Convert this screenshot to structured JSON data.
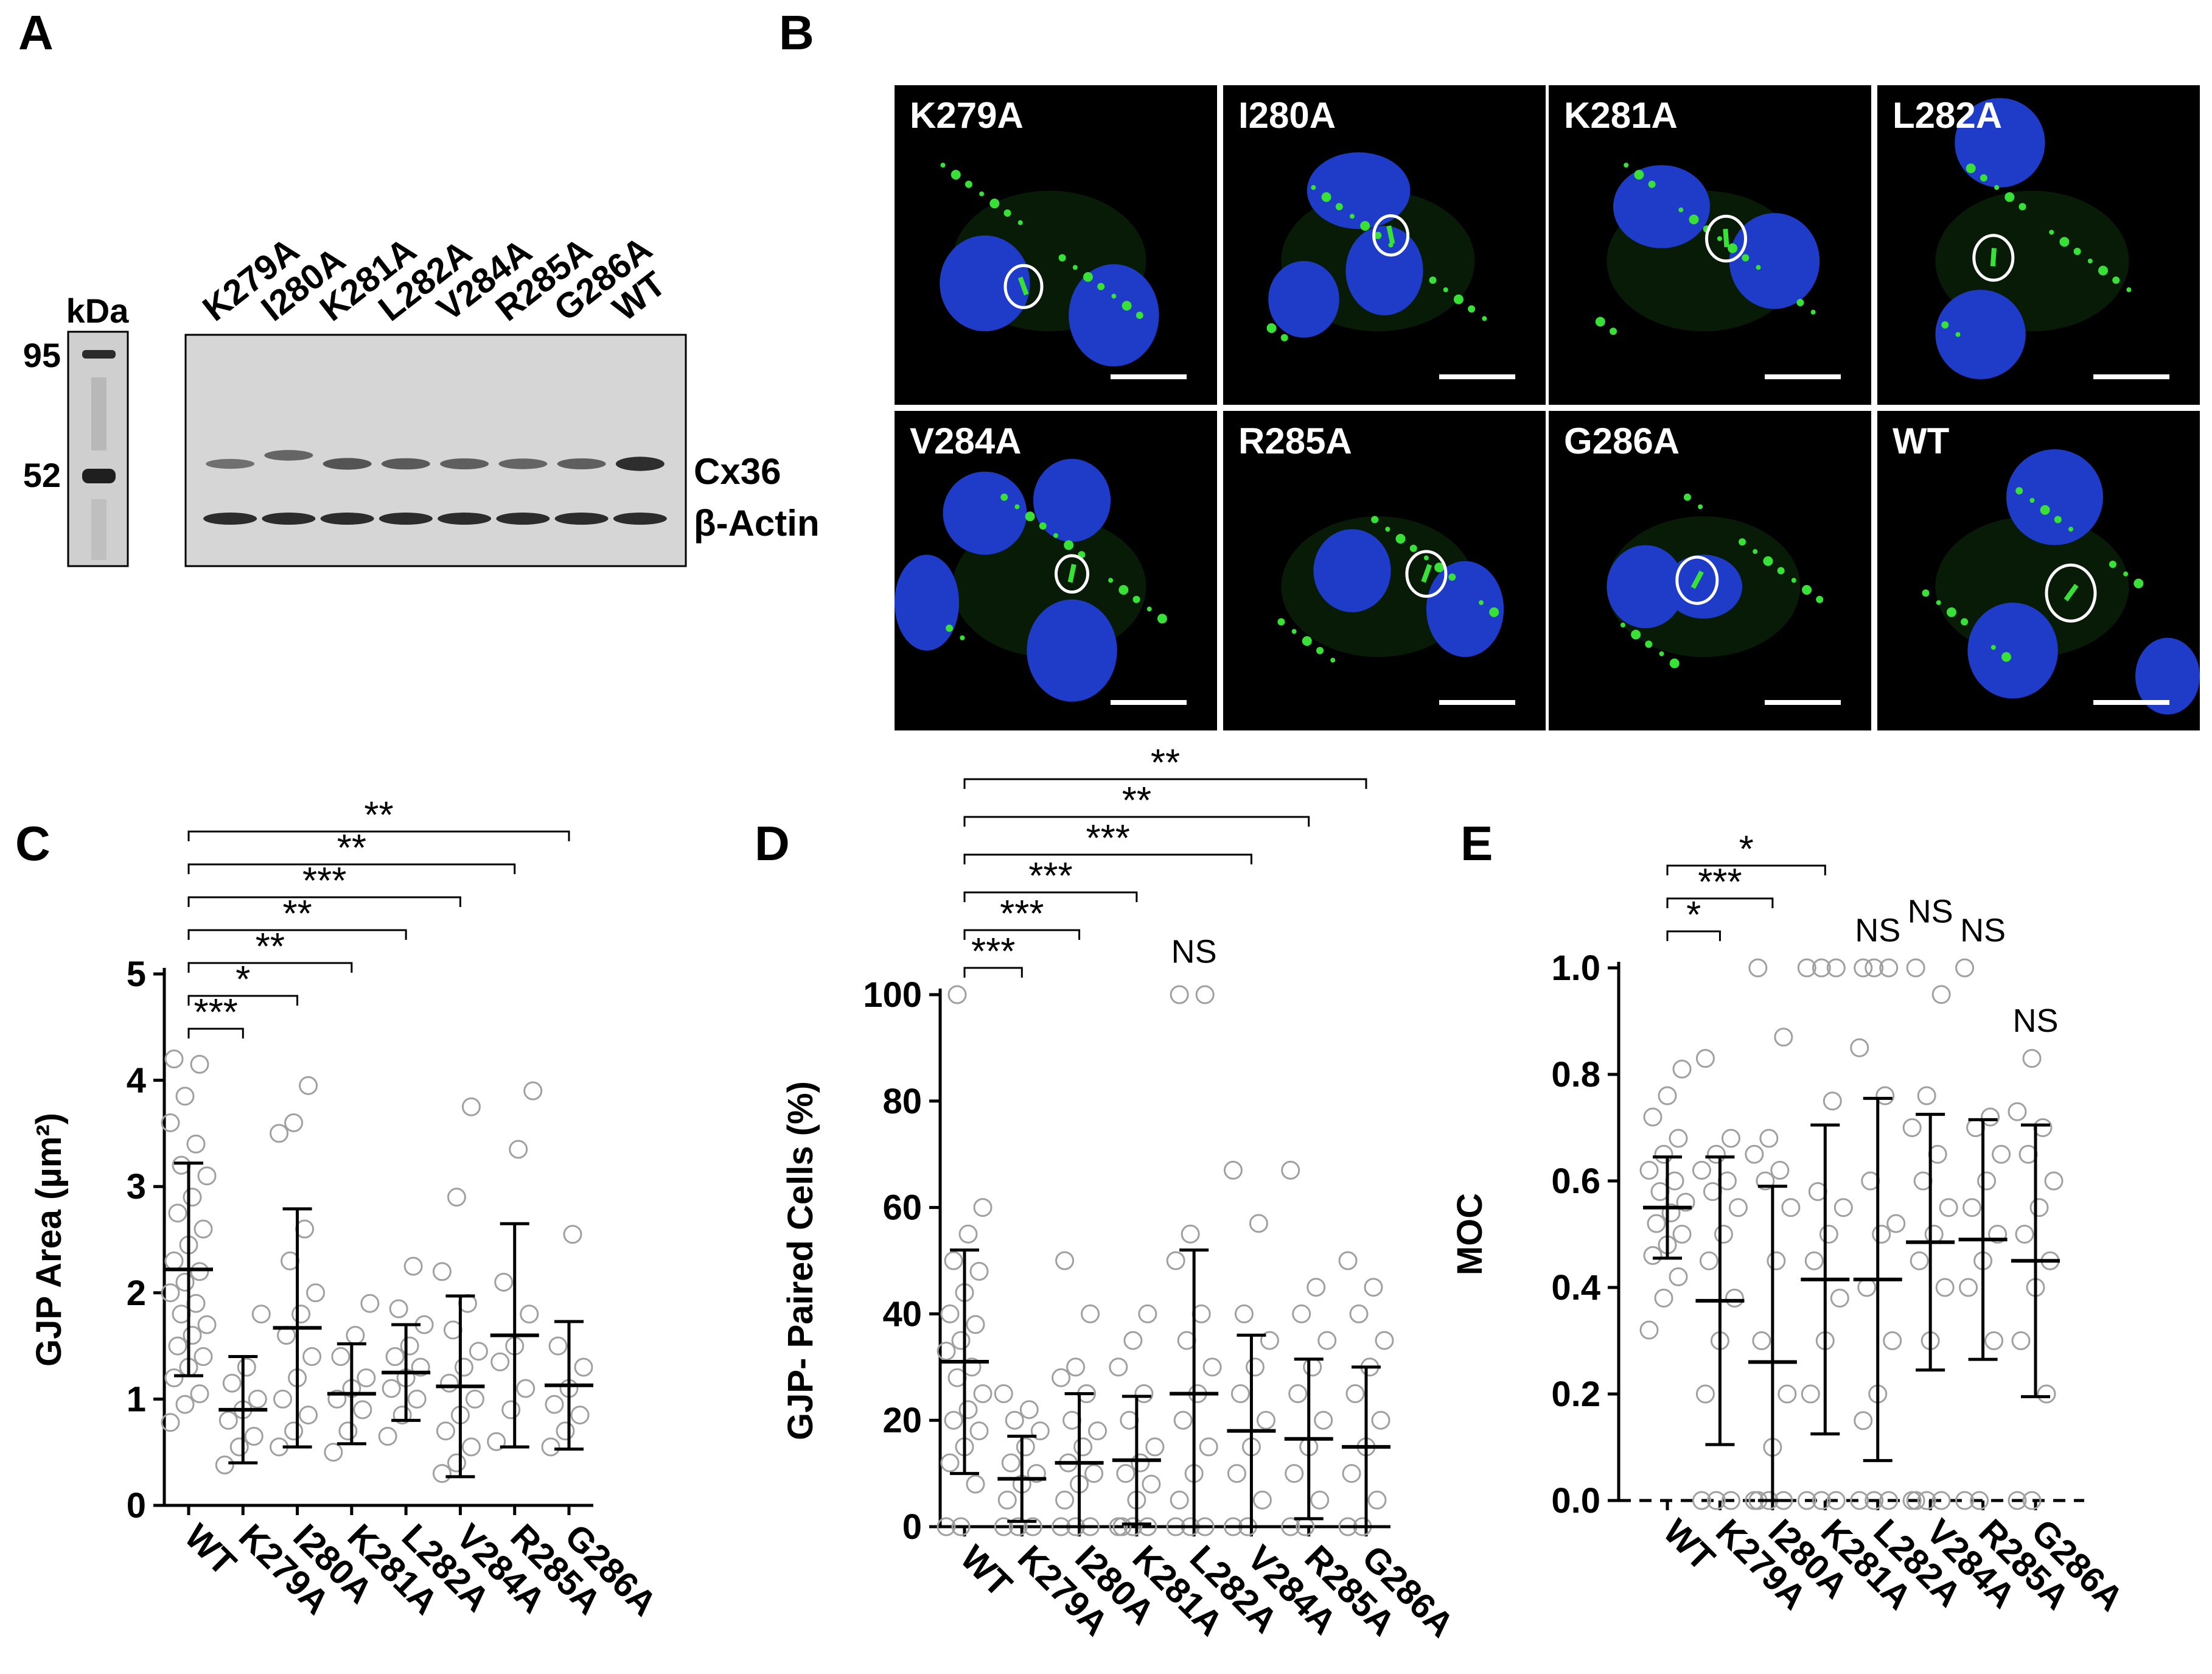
{
  "panels": {
    "a": {
      "letter": "A"
    },
    "b": {
      "letter": "B"
    },
    "c": {
      "letter": "C"
    },
    "d": {
      "letter": "D"
    },
    "e": {
      "letter": "E"
    }
  },
  "blot": {
    "kda_label": "kDa",
    "markers": [
      "95",
      "52"
    ],
    "lanes": [
      "K279A",
      "I280A",
      "K281A",
      "L282A",
      "V284A",
      "R285A",
      "G286A",
      "WT"
    ],
    "band_labels": [
      "Cx36",
      "β-Actin"
    ],
    "cx36_intensity": [
      0.35,
      0.45,
      0.6,
      0.55,
      0.5,
      0.45,
      0.5,
      0.95
    ]
  },
  "micrographs": {
    "labels": [
      "K279A",
      "I280A",
      "K281A",
      "L282A",
      "V284A",
      "R285A",
      "G286A",
      "WT"
    ],
    "colors": {
      "background": "#000000",
      "nuclei": "#1e3cc8",
      "cx36": "#38e038",
      "annotation": "#ffffff"
    }
  },
  "chart_data": [
    {
      "panel": "C",
      "type": "scatter",
      "categories": [
        "WT",
        "K279A",
        "I280A",
        "K281A",
        "L282A",
        "V284A",
        "R285A",
        "G286A"
      ],
      "ylabel": "GJP Area (µm²)",
      "ylim": [
        0,
        5
      ],
      "yticks": [
        "0",
        "1",
        "2",
        "3",
        "4",
        "5"
      ],
      "means": [
        2.22,
        0.9,
        1.67,
        1.05,
        1.25,
        1.12,
        1.6,
        1.13
      ],
      "sd": [
        1.0,
        0.5,
        1.12,
        0.47,
        0.45,
        0.85,
        1.05,
        0.6
      ],
      "points": [
        [
          0.78,
          0.95,
          1.05,
          1.2,
          1.3,
          1.4,
          1.5,
          1.6,
          1.7,
          1.8,
          1.9,
          2.0,
          2.1,
          2.2,
          2.3,
          2.45,
          2.6,
          2.75,
          2.9,
          3.1,
          3.2,
          3.4,
          3.6,
          3.85,
          4.15,
          4.2
        ],
        [
          0.38,
          0.55,
          0.65,
          0.8,
          0.9,
          1.0,
          1.15,
          1.3,
          1.8
        ],
        [
          0.55,
          0.7,
          0.85,
          1.0,
          1.2,
          1.4,
          1.6,
          1.8,
          2.0,
          2.3,
          2.6,
          3.5,
          3.6,
          3.95
        ],
        [
          0.5,
          0.7,
          0.9,
          1.0,
          1.1,
          1.2,
          1.4,
          1.6,
          1.9
        ],
        [
          0.65,
          0.85,
          1.0,
          1.1,
          1.2,
          1.3,
          1.4,
          1.5,
          1.7,
          1.85,
          2.25
        ],
        [
          0.3,
          0.4,
          0.55,
          0.7,
          0.85,
          1.0,
          1.15,
          1.3,
          1.45,
          1.65,
          1.9,
          2.2,
          2.9,
          3.75
        ],
        [
          0.6,
          0.9,
          1.1,
          1.35,
          1.5,
          1.8,
          2.1,
          3.35,
          3.9
        ],
        [
          0.55,
          0.7,
          0.85,
          0.95,
          1.1,
          1.3,
          1.5,
          2.55
        ]
      ],
      "brackets": [
        {
          "to": "K279A",
          "label": "***"
        },
        {
          "to": "I280A",
          "label": "*"
        },
        {
          "to": "K281A",
          "label": "**"
        },
        {
          "to": "L282A",
          "label": "**"
        },
        {
          "to": "V284A",
          "label": "***"
        },
        {
          "to": "R285A",
          "label": "**"
        },
        {
          "to": "G286A",
          "label": "**"
        }
      ],
      "ns_labels": []
    },
    {
      "panel": "D",
      "type": "scatter",
      "categories": [
        "WT",
        "K279A",
        "I280A",
        "K281A",
        "L282A",
        "V284A",
        "R285A",
        "G286A"
      ],
      "ylabel": "GJP- Paired Cells (%)",
      "ylim": [
        0,
        100
      ],
      "yticks": [
        "0",
        "20",
        "40",
        "60",
        "80",
        "100"
      ],
      "means": [
        31,
        9,
        12,
        12.5,
        25,
        18,
        16.5,
        15
      ],
      "sd": [
        21,
        8,
        13,
        12,
        27,
        18,
        15,
        15
      ],
      "points": [
        [
          0,
          0,
          8,
          12,
          15,
          18,
          20,
          22,
          25,
          28,
          30,
          33,
          35,
          38,
          40,
          44,
          48,
          50,
          55,
          60,
          100
        ],
        [
          0,
          0,
          0,
          5,
          8,
          10,
          12,
          15,
          18,
          20,
          22,
          25
        ],
        [
          0,
          0,
          0,
          5,
          8,
          10,
          12,
          15,
          18,
          20,
          25,
          28,
          30,
          40,
          50
        ],
        [
          0,
          0,
          0,
          0,
          5,
          8,
          10,
          12,
          15,
          20,
          25,
          30,
          35,
          40
        ],
        [
          0,
          0,
          0,
          5,
          10,
          15,
          20,
          25,
          30,
          35,
          40,
          50,
          55,
          100,
          100
        ],
        [
          0,
          0,
          5,
          10,
          15,
          20,
          25,
          30,
          35,
          40,
          57,
          67
        ],
        [
          0,
          0,
          5,
          10,
          15,
          20,
          25,
          30,
          35,
          40,
          45,
          67
        ],
        [
          0,
          0,
          5,
          10,
          15,
          20,
          25,
          30,
          35,
          40,
          45,
          50
        ]
      ],
      "brackets": [
        {
          "to": "K279A",
          "label": "***"
        },
        {
          "to": "I280A",
          "label": "***"
        },
        {
          "to": "K281A",
          "label": "***"
        },
        {
          "to": "V284A",
          "label": "***"
        },
        {
          "to": "R285A",
          "label": "**"
        },
        {
          "to": "G286A",
          "label": "**"
        }
      ],
      "ns_labels": [
        {
          "at": "L282A",
          "label": "NS",
          "y": 106
        }
      ]
    },
    {
      "panel": "E",
      "type": "scatter",
      "categories": [
        "WT",
        "K279A",
        "I280A",
        "K281A",
        "L282A",
        "V284A",
        "R285A",
        "G286A"
      ],
      "ylabel": "MOC",
      "ylim": [
        0,
        1.0
      ],
      "yticks": [
        "0.0",
        "0.2",
        "0.4",
        "0.6",
        "0.8",
        "1.0"
      ],
      "means": [
        0.55,
        0.375,
        0.26,
        0.415,
        0.415,
        0.485,
        0.49,
        0.45
      ],
      "sd": [
        0.095,
        0.27,
        0.33,
        0.29,
        0.34,
        0.24,
        0.225,
        0.255
      ],
      "points": [
        [
          0.32,
          0.38,
          0.42,
          0.46,
          0.48,
          0.5,
          0.52,
          0.54,
          0.56,
          0.58,
          0.6,
          0.62,
          0.65,
          0.68,
          0.72,
          0.76,
          0.81
        ],
        [
          0,
          0,
          0,
          0.2,
          0.3,
          0.38,
          0.45,
          0.5,
          0.55,
          0.58,
          0.6,
          0.62,
          0.65,
          0.68,
          0.83
        ],
        [
          0,
          0,
          0,
          0,
          0.1,
          0.2,
          0.3,
          0.45,
          0.55,
          0.6,
          0.62,
          0.65,
          0.68,
          0.87,
          1.0
        ],
        [
          0,
          0,
          0,
          0.2,
          0.3,
          0.38,
          0.45,
          0.5,
          0.55,
          0.58,
          0.75,
          1.0,
          1.0,
          1.0
        ],
        [
          0,
          0,
          0,
          0.15,
          0.2,
          0.3,
          0.4,
          0.5,
          0.52,
          0.6,
          0.76,
          0.85,
          1.0,
          1.0,
          1.0
        ],
        [
          0,
          0,
          0,
          0,
          0.3,
          0.4,
          0.45,
          0.5,
          0.55,
          0.6,
          0.65,
          0.7,
          0.76,
          0.95,
          1.0
        ],
        [
          0,
          0,
          0.3,
          0.4,
          0.45,
          0.5,
          0.55,
          0.6,
          0.65,
          0.7,
          0.72,
          1.0
        ],
        [
          0,
          0,
          0.2,
          0.3,
          0.4,
          0.45,
          0.5,
          0.55,
          0.6,
          0.65,
          0.7,
          0.73,
          0.83
        ]
      ],
      "brackets": [
        {
          "to": "K279A",
          "label": "*"
        },
        {
          "to": "I280A",
          "label": "***"
        },
        {
          "to": "K281A",
          "label": "*"
        }
      ],
      "ns_labels": [
        {
          "at": "L282A",
          "label": "NS",
          "y": 1.05
        },
        {
          "at": "V284A",
          "label": "NS",
          "y": 1.085
        },
        {
          "at": "R285A",
          "label": "NS",
          "y": 1.05
        },
        {
          "at": "G286A",
          "label": "NS",
          "y": 0.88
        }
      ]
    }
  ]
}
